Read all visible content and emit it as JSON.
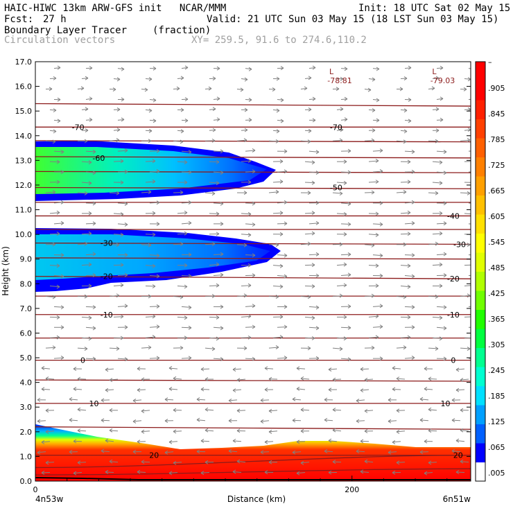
{
  "header": {
    "line1_left": "HAIC-HIWC 13km ARW-GFS init   NCAR/MMM",
    "line1_right": "Init: 18 UTC Sat 02 May 15",
    "line2_left_label": "Fcst:",
    "line2_left_value": "27 h",
    "line2_right": "Valid: 21 UTC Sun 03 May 15 (18 LST Sun 03 May 15)",
    "line3_left": "Boundary Layer Tracer",
    "line3_units": "(fraction)",
    "line4_left": "Circulation vectors",
    "line4_right": "XY= 259.5, 91.6 to 274.6,110.2"
  },
  "colors": {
    "contour": "#8b1a1a",
    "vector": "#808080",
    "scale": [
      "#ffffff",
      "#0000ff",
      "#0060ff",
      "#00a0ff",
      "#00e0ff",
      "#00ffd0",
      "#00ff90",
      "#00ff40",
      "#20ff00",
      "#70ff00",
      "#b0ff00",
      "#e0ff00",
      "#ffff00",
      "#ffe000",
      "#ffc000",
      "#ffa000",
      "#ff8000",
      "#ff6000",
      "#ff4000",
      "#ff2000",
      "#ff0000",
      "#ff0000"
    ]
  },
  "chart_data": {
    "type": "heatmap",
    "xlabel": "Distance (km)",
    "ylabel": "Height (km)",
    "xlim": [
      0,
      275
    ],
    "ylim": [
      0,
      17
    ],
    "x_ticks": [
      {
        "v": 0,
        "label": "0"
      },
      {
        "v": 200,
        "label": "200"
      }
    ],
    "x_end_labels": {
      "left": "4n53w",
      "right": "6n51w"
    },
    "y_ticks": [
      "0.0",
      "1.0",
      "2.0",
      "3.0",
      "4.0",
      "5.0",
      "6.0",
      "7.0",
      "8.0",
      "9.0",
      "10.0",
      "11.0",
      "12.0",
      "13.0",
      "14.0",
      "15.0",
      "16.0",
      "17.0"
    ],
    "colorbar_labels": [
      ".005",
      ".065",
      ".125",
      ".185",
      ".245",
      ".305",
      ".365",
      ".425",
      ".485",
      ".545",
      ".605",
      ".665",
      ".725",
      ".785",
      ".845",
      ".905",
      "–"
    ],
    "contour_labels": [
      {
        "text": "-70",
        "x": 27,
        "y": 14.35
      },
      {
        "text": "-70",
        "x": 190,
        "y": 14.35
      },
      {
        "text": "-60",
        "x": 40,
        "y": 13.1
      },
      {
        "text": "-50",
        "x": 190,
        "y": 11.9
      },
      {
        "text": "-40",
        "x": 264,
        "y": 10.75
      },
      {
        "text": "-30",
        "x": 45,
        "y": 9.65
      },
      {
        "text": "-30",
        "x": 268,
        "y": 9.6
      },
      {
        "text": "-20",
        "x": 45,
        "y": 8.3
      },
      {
        "text": "-20",
        "x": 264,
        "y": 8.2
      },
      {
        "text": "-10",
        "x": 45,
        "y": 6.75
      },
      {
        "text": "-10",
        "x": 264,
        "y": 6.75
      },
      {
        "text": "0",
        "x": 30,
        "y": 4.9
      },
      {
        "text": "0",
        "x": 264,
        "y": 4.9
      },
      {
        "text": "10",
        "x": 37,
        "y": 3.15
      },
      {
        "text": "10",
        "x": 259,
        "y": 3.15
      },
      {
        "text": "20",
        "x": 75,
        "y": 1.05
      },
      {
        "text": "20",
        "x": 267,
        "y": 1.05
      }
    ],
    "lows": [
      {
        "symbol": "L",
        "value": "-78.81",
        "x": 187,
        "y": 16.3
      },
      {
        "symbol": "L",
        "value": "-79.03",
        "x": 252,
        "y": 16.3
      }
    ]
  }
}
